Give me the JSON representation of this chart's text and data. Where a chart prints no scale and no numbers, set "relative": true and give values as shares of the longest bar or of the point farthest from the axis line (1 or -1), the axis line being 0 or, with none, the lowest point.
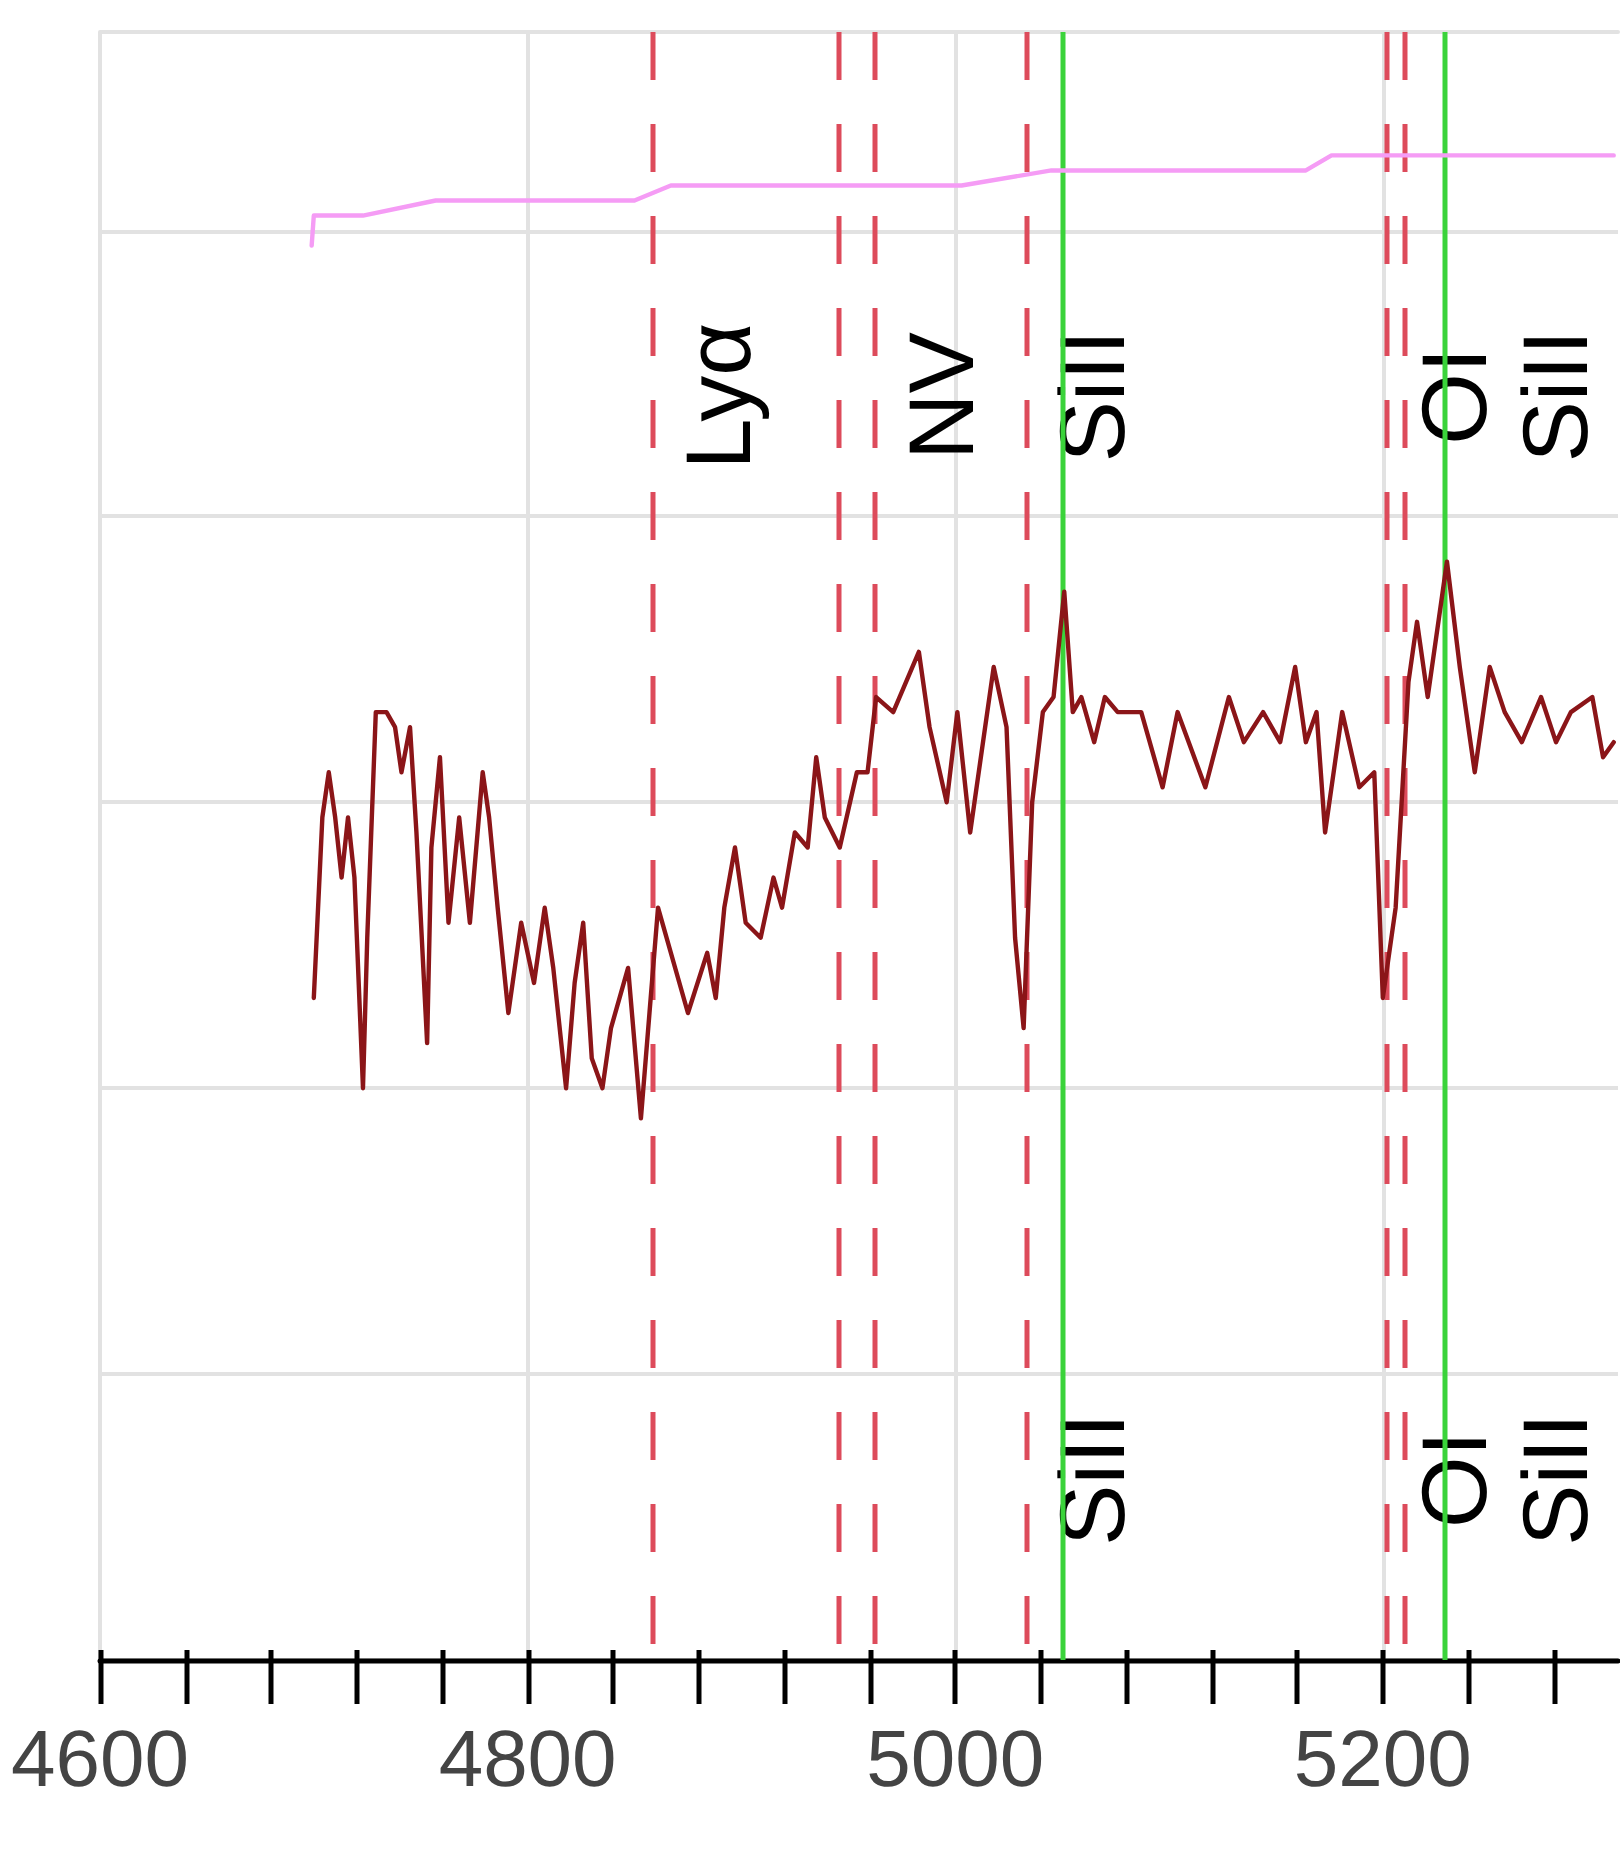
{
  "chart_data": {
    "type": "line",
    "relative": true,
    "xlim": [
      4600,
      5310
    ],
    "xticks": [
      4600,
      {
        "value": 4640,
        "label": null
      },
      {
        "value": 4680,
        "label": null
      },
      {
        "value": 4720,
        "label": null
      },
      {
        "value": 4760,
        "label": null
      },
      4800,
      {
        "value": 4840,
        "label": null
      },
      {
        "value": 4880,
        "label": null
      },
      {
        "value": 4920,
        "label": null
      },
      {
        "value": 4960,
        "label": null
      },
      5000,
      {
        "value": 5040,
        "label": null
      },
      {
        "value": 5080,
        "label": null
      },
      {
        "value": 5120,
        "label": null
      },
      {
        "value": 5160,
        "label": null
      },
      5200,
      {
        "value": 5240,
        "label": null
      },
      {
        "value": 5280,
        "label": null
      }
    ],
    "grid": true,
    "series": [
      {
        "color": "#f59cf5",
        "x": [
          4699,
          4700,
          4723,
          4757,
          4801,
          4814,
          4825,
          4850,
          4867,
          4918,
          4960,
          5003,
          5045,
          5087,
          5130,
          5164,
          5176,
          5185,
          5197,
          5231,
          5265,
          5308
        ],
        "values": [
          0.94,
          0.96,
          0.96,
          0.97,
          0.97,
          0.97,
          0.97,
          0.97,
          0.98,
          0.98,
          0.98,
          0.98,
          0.99,
          0.99,
          0.99,
          0.99,
          1,
          1,
          1,
          1,
          1,
          1
        ]
      },
      {
        "color": "#8b1518",
        "x": [
          4700,
          4702,
          4704,
          4707,
          4710,
          4713,
          4716,
          4719,
          4723,
          4725,
          4729,
          4734,
          4738,
          4741,
          4745,
          4748,
          4753,
          4755,
          4759,
          4763,
          4768,
          4773,
          4779,
          4782,
          4786,
          4791,
          4797,
          4803,
          4808,
          4812,
          4818,
          4822,
          4826,
          4830,
          4835,
          4839,
          4847,
          4853,
          4857,
          4861,
          4875,
          4884,
          4888,
          4892,
          4897,
          4902,
          4909,
          4915,
          4919,
          4925,
          4931,
          4935,
          4939,
          4946,
          4954,
          4959,
          4963,
          4971,
          4983,
          4988,
          4996,
          5001,
          5007,
          5018,
          5024,
          5028,
          5032,
          5036,
          5041,
          5046,
          5051,
          5055,
          5059,
          5065,
          5070,
          5076,
          5082,
          5087,
          5097,
          5104,
          5117,
          5128,
          5135,
          5144,
          5152,
          5159,
          5164,
          5169,
          5173,
          5181,
          5189,
          5196,
          5200,
          5206,
          5212,
          5216,
          5221,
          5230,
          5236,
          5243,
          5250,
          5257,
          5265,
          5274,
          5281,
          5288,
          5298,
          5303,
          5308
        ],
        "values": [
          0.44,
          0.5,
          0.56,
          0.59,
          0.56,
          0.52,
          0.56,
          0.52,
          0.38,
          0.48,
          0.63,
          0.63,
          0.62,
          0.59,
          0.62,
          0.55,
          0.41,
          0.54,
          0.6,
          0.49,
          0.56,
          0.49,
          0.59,
          0.56,
          0.5,
          0.43,
          0.49,
          0.45,
          0.5,
          0.46,
          0.38,
          0.45,
          0.49,
          0.4,
          0.38,
          0.42,
          0.46,
          0.36,
          0.43,
          0.5,
          0.43,
          0.47,
          0.44,
          0.5,
          0.54,
          0.49,
          0.48,
          0.52,
          0.5,
          0.55,
          0.54,
          0.6,
          0.56,
          0.54,
          0.59,
          0.59,
          0.64,
          0.63,
          0.67,
          0.62,
          0.57,
          0.63,
          0.55,
          0.66,
          0.62,
          0.48,
          0.42,
          0.57,
          0.63,
          0.64,
          0.71,
          0.63,
          0.64,
          0.61,
          0.64,
          0.63,
          0.63,
          0.63,
          0.58,
          0.63,
          0.58,
          0.64,
          0.61,
          0.63,
          0.61,
          0.66,
          0.61,
          0.63,
          0.55,
          0.63,
          0.58,
          0.59,
          0.44,
          0.5,
          0.65,
          0.69,
          0.64,
          0.73,
          0.66,
          0.59,
          0.66,
          0.63,
          0.61,
          0.64,
          0.61,
          0.63,
          0.64,
          0.6,
          0.61
        ]
      }
    ],
    "ref_lines": [
      {
        "axis": "x",
        "value": 4858,
        "color": "#dd4b5b",
        "line_style": "dashed"
      },
      {
        "axis": "x",
        "value": 4945,
        "color": "#dd4b5b",
        "line_style": "dashed"
      },
      {
        "axis": "x",
        "value": 4962,
        "color": "#dd4b5b",
        "line_style": "dashed"
      },
      {
        "axis": "x",
        "value": 5033,
        "color": "#dd4b5b",
        "line_style": "dashed"
      },
      {
        "axis": "x",
        "value": 5202,
        "color": "#dd4b5b",
        "line_style": "dashed"
      },
      {
        "axis": "x",
        "value": 5210,
        "color": "#dd4b5b",
        "line_style": "dashed"
      },
      {
        "axis": "x",
        "value": 5050,
        "color": "#3ad33a",
        "line_style": "solid"
      },
      {
        "axis": "x",
        "value": 5229,
        "color": "#3ad33a",
        "line_style": "solid"
      }
    ],
    "annotations": [
      {
        "text": "Lyα",
        "x": 4858,
        "y": 0.84
      },
      {
        "text": "NV",
        "x": 4962,
        "y": 0.84
      },
      {
        "text": "SiII",
        "x": 5033,
        "y": 0.84
      },
      {
        "text": "OI",
        "x": 5202,
        "y": 0.84
      },
      {
        "text": "SiII",
        "x": 5210,
        "y": 0.84
      },
      {
        "text": "SiII",
        "x": 5033,
        "y": 0.12
      },
      {
        "text": "OI",
        "x": 5202,
        "y": 0.12
      },
      {
        "text": "SiII",
        "x": 5210,
        "y": 0.12
      }
    ]
  }
}
